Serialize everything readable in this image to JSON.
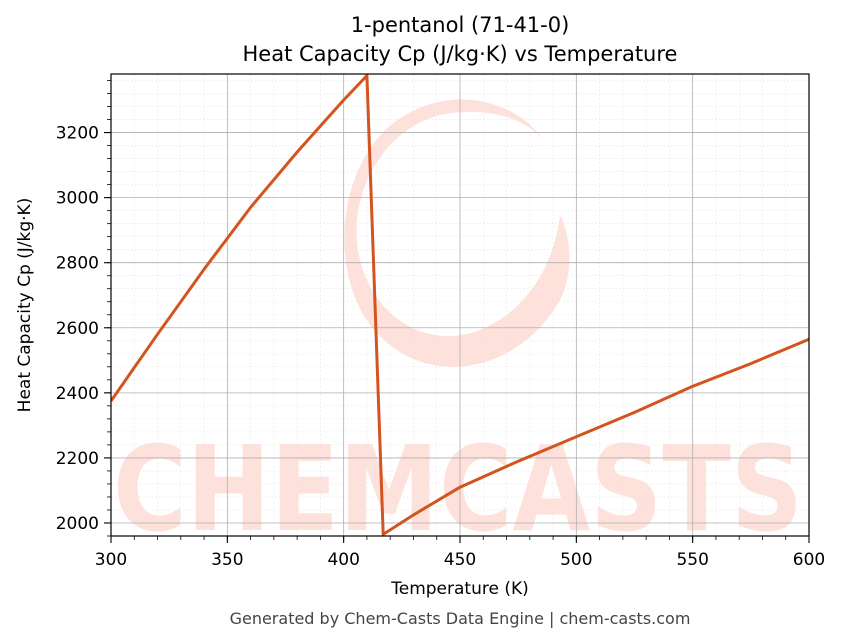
{
  "chart_data": {
    "type": "line",
    "title": "1-pentanol (71-41-0)",
    "subtitle": "Heat Capacity Cp (J/kg·K) vs Temperature",
    "xlabel": "Temperature (K)",
    "ylabel": "Heat Capacity Cp (J/kg·K)",
    "xlim": [
      300,
      600
    ],
    "ylim": [
      1960,
      3380
    ],
    "x_ticks": [
      300,
      350,
      400,
      450,
      500,
      550,
      600
    ],
    "y_ticks": [
      2000,
      2200,
      2400,
      2600,
      2800,
      3000,
      3200
    ],
    "grid": true,
    "line_color": "#d4541f",
    "series": [
      {
        "points": [
          [
            300,
            2375
          ],
          [
            320,
            2580
          ],
          [
            340,
            2780
          ],
          [
            360,
            2970
          ],
          [
            380,
            3140
          ],
          [
            400,
            3300
          ],
          [
            410,
            3375
          ],
          [
            417,
            1965
          ],
          [
            430,
            2025
          ],
          [
            450,
            2110
          ],
          [
            475,
            2190
          ],
          [
            500,
            2265
          ],
          [
            525,
            2340
          ],
          [
            550,
            2420
          ],
          [
            575,
            2490
          ],
          [
            600,
            2565
          ]
        ]
      }
    ]
  },
  "watermark": {
    "text": "CHEMCASTS"
  },
  "footer": "Generated by Chem-Casts Data Engine | chem-casts.com"
}
